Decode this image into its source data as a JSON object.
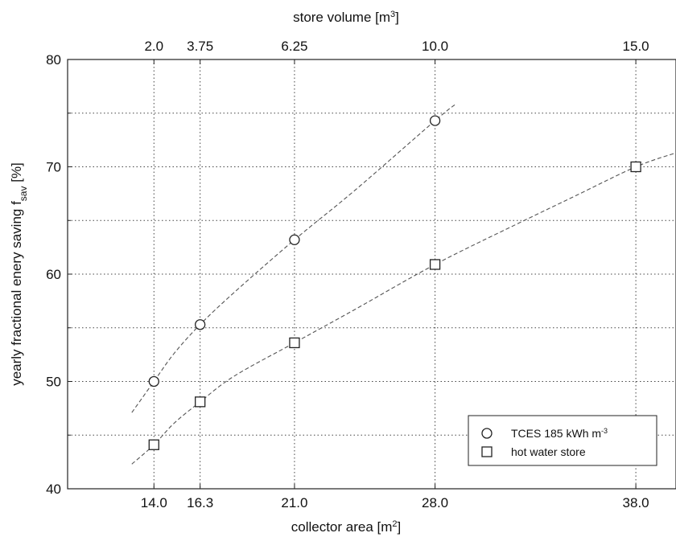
{
  "chart_data": {
    "type": "line",
    "xlabel": "collector area [m",
    "xlabel_sup": "2",
    "xlabel_end": "]",
    "x2label": "store volume [m",
    "x2label_sup": "3",
    "x2label_end": "]",
    "ylabel": "yearly fractional enery saving f",
    "ylabel_sub": "sav",
    "ylabel_end": " [%]",
    "xlim": [
      9.7,
      40.0
    ],
    "ylim": [
      40,
      80
    ],
    "x_ticks": [
      14.0,
      16.3,
      21.0,
      28.0,
      38.0
    ],
    "x_tick_labels": [
      "14.0",
      "16.3",
      "21.0",
      "28.0",
      "38.0"
    ],
    "x2_ticks": [
      14.0,
      16.3,
      21.0,
      28.0,
      38.0
    ],
    "x2_tick_labels": [
      "2.0",
      "3.75",
      "6.25",
      "10.0",
      "15.0"
    ],
    "y_ticks": [
      40,
      50,
      60,
      70,
      80
    ],
    "y_tick_labels": [
      "40",
      "50",
      "60",
      "70",
      "80"
    ],
    "y_minor_grid": [
      45,
      55,
      65,
      75
    ],
    "grid": true,
    "legend_position": "lower-right",
    "series": [
      {
        "name": "TCES 185 kWh m",
        "name_sup": "-3",
        "marker": "circle",
        "x": [
          14.0,
          16.3,
          21.0,
          28.0
        ],
        "y": [
          50.0,
          55.3,
          63.2,
          74.3
        ],
        "fit_curve": {
          "x": [
            12.9,
            14.0,
            15.0,
            16.3,
            18.0,
            21.0,
            24.0,
            28.0,
            29.0
          ],
          "y": [
            47.1,
            50.0,
            52.6,
            55.3,
            58.3,
            63.2,
            67.8,
            74.3,
            75.8
          ]
        }
      },
      {
        "name": "hot water store",
        "marker": "square",
        "x": [
          14.0,
          16.3,
          21.0,
          28.0,
          38.0
        ],
        "y": [
          44.1,
          48.1,
          53.6,
          60.9,
          70.0
        ],
        "fit_curve": {
          "x": [
            12.9,
            14.0,
            15.0,
            16.3,
            18.0,
            21.0,
            24.0,
            28.0,
            32.0,
            35.0,
            38.0,
            40.0
          ],
          "y": [
            42.3,
            44.1,
            46.1,
            48.1,
            50.5,
            53.6,
            56.7,
            60.9,
            64.6,
            67.3,
            70.0,
            71.3
          ]
        }
      }
    ]
  }
}
